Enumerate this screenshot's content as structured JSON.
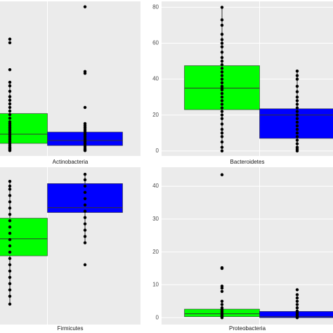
{
  "chart_data": [
    {
      "type": "boxplot",
      "title": "Actinobacteria",
      "ylim": [
        -3,
        83
      ],
      "series": [
        {
          "color": "#00ff00",
          "low": 0,
          "q1": 4,
          "median": 9.1,
          "q3": 20.6,
          "high": 37.7,
          "points": [
            0,
            0.5,
            1,
            1.5,
            2,
            3,
            4,
            5,
            6,
            7,
            8,
            9,
            10,
            11,
            12,
            13,
            14,
            15,
            16,
            18,
            20,
            22,
            24,
            26,
            28,
            30,
            33,
            36,
            38,
            45,
            60,
            62
          ]
        },
        {
          "color": "#0000ff",
          "low": 0,
          "q1": 2.8,
          "median": 5.6,
          "q3": 10.3,
          "high": 14.7,
          "points": [
            0,
            0.5,
            1,
            2,
            3,
            4,
            5,
            6,
            7,
            8,
            9,
            10,
            11,
            12,
            13,
            14,
            15,
            24,
            43,
            44,
            80
          ]
        }
      ]
    },
    {
      "type": "boxplot",
      "title": "Bacteroidetes",
      "ylim": [
        -2.8,
        83.3
      ],
      "yticks": [
        0,
        20,
        40,
        60,
        80
      ],
      "grid": true,
      "series": [
        {
          "color": "#00ff00",
          "low": 0,
          "q1": 23,
          "median": 35,
          "q3": 47.5,
          "high": 80,
          "points": [
            0,
            2,
            5,
            8,
            10,
            12,
            15,
            18,
            20,
            22,
            24,
            26,
            28,
            30,
            32,
            34,
            35,
            36,
            38,
            40,
            42,
            44,
            46,
            48,
            50,
            52,
            55,
            58,
            60,
            62,
            65,
            70,
            73,
            80
          ]
        },
        {
          "color": "#0000ff",
          "low": 0,
          "q1": 7,
          "median": 20,
          "q3": 23.5,
          "high": 44.5,
          "points": [
            0,
            1,
            2,
            4,
            6,
            8,
            10,
            12,
            14,
            16,
            18,
            20,
            22,
            24,
            26,
            28,
            30,
            33,
            36,
            40,
            42,
            44.5
          ]
        }
      ]
    },
    {
      "type": "boxplot",
      "title": "Firmicutes",
      "ylim": [
        0,
        100
      ],
      "series": [
        {
          "color": "#00ff00",
          "low": 13,
          "q1": 43.7,
          "median": 54.5,
          "q3": 67.6,
          "high": 91,
          "points": [
            13,
            18,
            22,
            26,
            30,
            34,
            38,
            42,
            46,
            50,
            54,
            58,
            62,
            66,
            70,
            74,
            78,
            82,
            86,
            88,
            91
          ]
        },
        {
          "color": "#0000ff",
          "low": 51.8,
          "q1": 71.2,
          "median": 74.3,
          "q3": 89.6,
          "high": 95.5,
          "points": [
            38,
            52,
            56,
            60,
            64,
            68,
            72,
            76,
            80,
            84,
            88,
            92,
            95.5
          ]
        }
      ]
    },
    {
      "type": "boxplot",
      "title": "Proteobacteria",
      "ylim": [
        -2.1,
        45.8
      ],
      "yticks": [
        0,
        10,
        20,
        30,
        40
      ],
      "grid": true,
      "series": [
        {
          "color": "#00ff00",
          "low": 0,
          "q1": 0.3,
          "median": 1.2,
          "q3": 2.6,
          "high": 5,
          "points": [
            0,
            0.3,
            0.6,
            1,
            1.5,
            2,
            2.5,
            3,
            4,
            5,
            8,
            9,
            9.6,
            15,
            15.2,
            43.5
          ]
        },
        {
          "color": "#0000ff",
          "low": 0,
          "q1": 0,
          "median": 0.3,
          "q3": 1.9,
          "high": 4,
          "points": [
            0,
            0.2,
            0.5,
            1,
            1.5,
            2,
            3,
            4,
            5,
            6,
            7,
            8.5
          ]
        }
      ]
    }
  ]
}
